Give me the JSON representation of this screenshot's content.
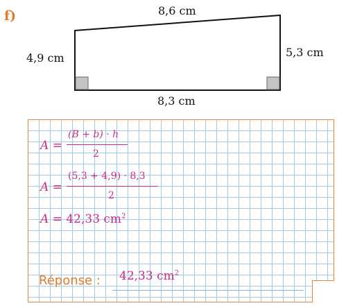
{
  "exercise": {
    "label": "f)"
  },
  "figure": {
    "top_side": "8,6 cm",
    "left_side": "4,9 cm",
    "right_side": "5,3 cm",
    "bottom_side": "8,3 cm"
  },
  "solution": {
    "line1": {
      "lhs": "A =",
      "numerator": "(B + b) · h",
      "denominator": "2"
    },
    "line2": {
      "lhs": "A =",
      "numerator": "(5,3 + 4,9) · 8,3",
      "denominator": "2"
    },
    "line3": {
      "lhs": "A =",
      "value": "42,33 cm",
      "exponent": "2"
    }
  },
  "answer": {
    "label": "Réponse :",
    "value": "42,33 cm",
    "exponent": "2"
  },
  "colors": {
    "label_orange": "#e07b2a",
    "formula_magenta": "#d02a86",
    "grid_blue": "#9ccbe9",
    "box_border": "#e8853a"
  }
}
